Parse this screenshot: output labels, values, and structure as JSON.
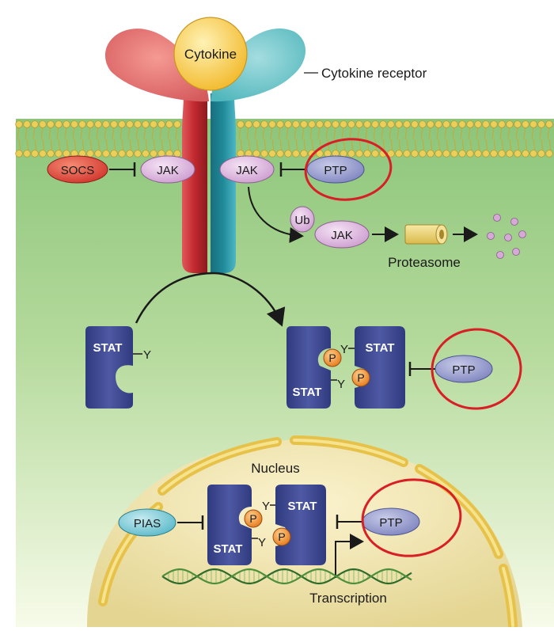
{
  "labels": {
    "cytokine": "Cytokine",
    "cytokine_receptor": "Cytokine receptor",
    "socs": "SOCS",
    "jak": "JAK",
    "ptp": "PTP",
    "ub": "Ub",
    "proteasome": "Proteasome",
    "stat": "STAT",
    "y": "Y",
    "p": "P",
    "nucleus": "Nucleus",
    "pias": "PIAS",
    "transcription": "Transcription"
  },
  "colors": {
    "cytoplasm": "#a9d48f",
    "membrane_head": "#e6c84a",
    "receptor_left": "#c0282e",
    "receptor_right": "#1f8a9a",
    "cytokine": "#f5c43a",
    "jak": "#d7a9d9",
    "ptp": "#8f95c6",
    "socs": "#d9392f",
    "pias": "#6cc3d1",
    "stat": "#3f4a92",
    "phospho": "#f08a2a",
    "nucleus_fill": "#e7d9a0",
    "highlight": "#d81f26"
  }
}
